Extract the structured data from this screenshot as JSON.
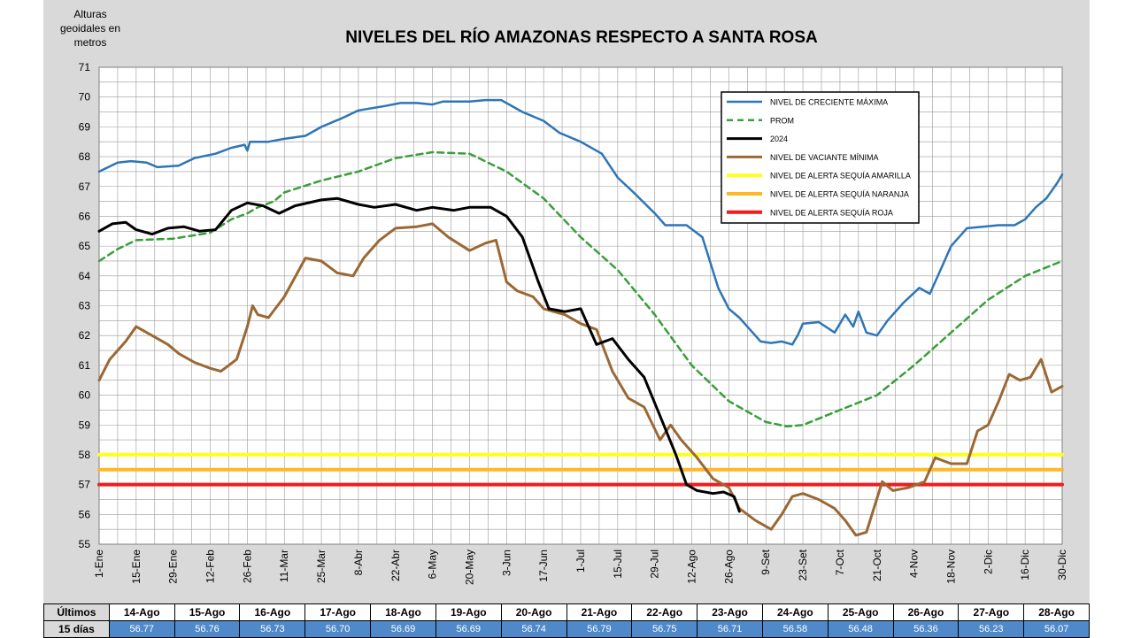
{
  "chart_data": {
    "type": "line",
    "title": "NIVELES DEL RÍO AMAZONAS RESPECTO A SANTA ROSA",
    "ylabel_lines": [
      "Alturas",
      "geoidales en",
      "metros"
    ],
    "ylim": [
      55,
      71
    ],
    "yticks": [
      55,
      56,
      57,
      58,
      59,
      60,
      61,
      62,
      63,
      64,
      65,
      66,
      67,
      68,
      69,
      70,
      71
    ],
    "x_domain": [
      0,
      364
    ],
    "xticks": [
      {
        "label": "1-Ene",
        "day": 0
      },
      {
        "label": "15-Ene",
        "day": 14
      },
      {
        "label": "29-Ene",
        "day": 28
      },
      {
        "label": "12-Feb",
        "day": 42
      },
      {
        "label": "26-Feb",
        "day": 56
      },
      {
        "label": "11-Mar",
        "day": 70
      },
      {
        "label": "25-Mar",
        "day": 84
      },
      {
        "label": "8-Abr",
        "day": 98
      },
      {
        "label": "22-Abr",
        "day": 112
      },
      {
        "label": "6-May",
        "day": 126
      },
      {
        "label": "20-May",
        "day": 140
      },
      {
        "label": "3-Jun",
        "day": 154
      },
      {
        "label": "17-Jun",
        "day": 168
      },
      {
        "label": "1-Jul",
        "day": 182
      },
      {
        "label": "15-Jul",
        "day": 196
      },
      {
        "label": "29-Jul",
        "day": 210
      },
      {
        "label": "12-Ago",
        "day": 224
      },
      {
        "label": "26-Ago",
        "day": 238
      },
      {
        "label": "9-Set",
        "day": 252
      },
      {
        "label": "23-Set",
        "day": 266
      },
      {
        "label": "7-Oct",
        "day": 280
      },
      {
        "label": "21-Oct",
        "day": 294
      },
      {
        "label": "4-Nov",
        "day": 308
      },
      {
        "label": "18-Nov",
        "day": 322
      },
      {
        "label": "2-Dic",
        "day": 336
      },
      {
        "label": "16-Dic",
        "day": 350
      },
      {
        "label": "30-Dic",
        "day": 364
      }
    ],
    "series": [
      {
        "name": "NIVEL DE CRECIENTE MÁXIMA",
        "color": "#2e75b6",
        "dash": "",
        "width": 2.5,
        "points": [
          [
            0,
            67.5
          ],
          [
            7,
            67.8
          ],
          [
            12,
            67.85
          ],
          [
            18,
            67.8
          ],
          [
            22,
            67.65
          ],
          [
            30,
            67.7
          ],
          [
            36,
            67.95
          ],
          [
            44,
            68.1
          ],
          [
            50,
            68.3
          ],
          [
            55,
            68.4
          ],
          [
            56,
            68.2
          ],
          [
            57,
            68.5
          ],
          [
            64,
            68.5
          ],
          [
            70,
            68.6
          ],
          [
            78,
            68.7
          ],
          [
            84,
            69
          ],
          [
            92,
            69.3
          ],
          [
            98,
            69.55
          ],
          [
            108,
            69.7
          ],
          [
            114,
            69.8
          ],
          [
            120,
            69.8
          ],
          [
            126,
            69.75
          ],
          [
            130,
            69.85
          ],
          [
            140,
            69.85
          ],
          [
            146,
            69.9
          ],
          [
            152,
            69.9
          ],
          [
            160,
            69.5
          ],
          [
            168,
            69.2
          ],
          [
            174,
            68.8
          ],
          [
            182,
            68.5
          ],
          [
            190,
            68.1
          ],
          [
            196,
            67.3
          ],
          [
            202,
            66.8
          ],
          [
            210,
            66.1
          ],
          [
            214,
            65.7
          ],
          [
            222,
            65.7
          ],
          [
            228,
            65.3
          ],
          [
            234,
            63.6
          ],
          [
            238,
            62.9
          ],
          [
            242,
            62.6
          ],
          [
            246,
            62.2
          ],
          [
            250,
            61.8
          ],
          [
            254,
            61.75
          ],
          [
            258,
            61.8
          ],
          [
            262,
            61.7
          ],
          [
            264,
            62.0
          ],
          [
            266,
            62.4
          ],
          [
            272,
            62.45
          ],
          [
            278,
            62.1
          ],
          [
            282,
            62.7
          ],
          [
            285,
            62.3
          ],
          [
            287,
            62.8
          ],
          [
            290,
            62.1
          ],
          [
            294,
            62.0
          ],
          [
            298,
            62.5
          ],
          [
            304,
            63.1
          ],
          [
            310,
            63.6
          ],
          [
            314,
            63.4
          ],
          [
            318,
            64.2
          ],
          [
            322,
            65.0
          ],
          [
            328,
            65.6
          ],
          [
            334,
            65.65
          ],
          [
            340,
            65.7
          ],
          [
            346,
            65.7
          ],
          [
            350,
            65.9
          ],
          [
            354,
            66.3
          ],
          [
            358,
            66.6
          ],
          [
            362,
            67.1
          ],
          [
            364,
            67.4
          ]
        ]
      },
      {
        "name": "PROM",
        "color": "#3a9e3a",
        "dash": "7,5",
        "width": 2.5,
        "points": [
          [
            0,
            64.5
          ],
          [
            7,
            64.9
          ],
          [
            14,
            65.2
          ],
          [
            28,
            65.25
          ],
          [
            42,
            65.45
          ],
          [
            50,
            65.9
          ],
          [
            56,
            66.1
          ],
          [
            60,
            66.3
          ],
          [
            66,
            66.5
          ],
          [
            70,
            66.8
          ],
          [
            84,
            67.2
          ],
          [
            98,
            67.5
          ],
          [
            112,
            67.95
          ],
          [
            126,
            68.15
          ],
          [
            140,
            68.1
          ],
          [
            154,
            67.5
          ],
          [
            168,
            66.6
          ],
          [
            182,
            65.3
          ],
          [
            196,
            64.2
          ],
          [
            210,
            62.7
          ],
          [
            224,
            61.0
          ],
          [
            238,
            59.8
          ],
          [
            252,
            59.1
          ],
          [
            260,
            58.95
          ],
          [
            266,
            59.0
          ],
          [
            280,
            59.5
          ],
          [
            294,
            60.0
          ],
          [
            308,
            61.0
          ],
          [
            322,
            62.1
          ],
          [
            336,
            63.2
          ],
          [
            350,
            64.0
          ],
          [
            364,
            64.5
          ]
        ]
      },
      {
        "name": "2024",
        "color": "#000000",
        "dash": "",
        "width": 3,
        "points": [
          [
            0,
            65.5
          ],
          [
            5,
            65.75
          ],
          [
            10,
            65.8
          ],
          [
            14,
            65.55
          ],
          [
            20,
            65.4
          ],
          [
            26,
            65.6
          ],
          [
            32,
            65.65
          ],
          [
            38,
            65.5
          ],
          [
            44,
            65.55
          ],
          [
            50,
            66.2
          ],
          [
            56,
            66.45
          ],
          [
            62,
            66.35
          ],
          [
            68,
            66.1
          ],
          [
            74,
            66.35
          ],
          [
            84,
            66.55
          ],
          [
            90,
            66.6
          ],
          [
            98,
            66.4
          ],
          [
            104,
            66.3
          ],
          [
            112,
            66.4
          ],
          [
            120,
            66.2
          ],
          [
            126,
            66.3
          ],
          [
            134,
            66.2
          ],
          [
            140,
            66.3
          ],
          [
            148,
            66.3
          ],
          [
            154,
            66.0
          ],
          [
            160,
            65.3
          ],
          [
            166,
            63.8
          ],
          [
            170,
            62.9
          ],
          [
            176,
            62.8
          ],
          [
            182,
            62.9
          ],
          [
            188,
            61.7
          ],
          [
            194,
            61.9
          ],
          [
            200,
            61.2
          ],
          [
            206,
            60.6
          ],
          [
            212,
            59.3
          ],
          [
            218,
            58.0
          ],
          [
            222,
            57.0
          ],
          [
            226,
            56.8
          ],
          [
            232,
            56.7
          ],
          [
            236,
            56.75
          ],
          [
            240,
            56.6
          ],
          [
            242,
            56.1
          ]
        ]
      },
      {
        "name": "NIVEL DE VACIANTE MÍNIMA",
        "color": "#9b6834",
        "dash": "",
        "width": 3,
        "points": [
          [
            0,
            60.5
          ],
          [
            4,
            61.2
          ],
          [
            10,
            61.8
          ],
          [
            14,
            62.3
          ],
          [
            20,
            62.0
          ],
          [
            26,
            61.7
          ],
          [
            30,
            61.4
          ],
          [
            36,
            61.1
          ],
          [
            42,
            60.9
          ],
          [
            46,
            60.8
          ],
          [
            52,
            61.2
          ],
          [
            56,
            62.3
          ],
          [
            58,
            63.0
          ],
          [
            60,
            62.7
          ],
          [
            64,
            62.6
          ],
          [
            70,
            63.3
          ],
          [
            78,
            64.6
          ],
          [
            84,
            64.5
          ],
          [
            90,
            64.1
          ],
          [
            96,
            64.0
          ],
          [
            100,
            64.6
          ],
          [
            106,
            65.2
          ],
          [
            112,
            65.6
          ],
          [
            120,
            65.65
          ],
          [
            126,
            65.75
          ],
          [
            132,
            65.3
          ],
          [
            140,
            64.85
          ],
          [
            146,
            65.1
          ],
          [
            150,
            65.2
          ],
          [
            154,
            63.8
          ],
          [
            158,
            63.5
          ],
          [
            164,
            63.3
          ],
          [
            168,
            62.9
          ],
          [
            176,
            62.7
          ],
          [
            182,
            62.4
          ],
          [
            188,
            62.2
          ],
          [
            194,
            60.8
          ],
          [
            200,
            59.9
          ],
          [
            206,
            59.6
          ],
          [
            212,
            58.5
          ],
          [
            216,
            59.0
          ],
          [
            220,
            58.5
          ],
          [
            226,
            57.9
          ],
          [
            232,
            57.2
          ],
          [
            238,
            56.9
          ],
          [
            242,
            56.2
          ],
          [
            248,
            55.8
          ],
          [
            254,
            55.5
          ],
          [
            258,
            56.0
          ],
          [
            262,
            56.6
          ],
          [
            266,
            56.7
          ],
          [
            272,
            56.5
          ],
          [
            278,
            56.2
          ],
          [
            282,
            55.8
          ],
          [
            286,
            55.3
          ],
          [
            290,
            55.4
          ],
          [
            296,
            57.1
          ],
          [
            300,
            56.8
          ],
          [
            306,
            56.9
          ],
          [
            312,
            57.1
          ],
          [
            316,
            57.9
          ],
          [
            322,
            57.7
          ],
          [
            328,
            57.7
          ],
          [
            332,
            58.8
          ],
          [
            336,
            59.0
          ],
          [
            340,
            59.8
          ],
          [
            344,
            60.7
          ],
          [
            348,
            60.5
          ],
          [
            352,
            60.6
          ],
          [
            356,
            61.2
          ],
          [
            360,
            60.1
          ],
          [
            364,
            60.3
          ]
        ]
      },
      {
        "name": "NIVEL DE ALERTA SEQUÍA AMARILLA",
        "color": "#ffff1a",
        "dash": "",
        "width": 4,
        "points": [
          [
            0,
            58
          ],
          [
            364,
            58
          ]
        ]
      },
      {
        "name": "NIVEL DE ALERTA SEQUÍA NARANJA",
        "color": "#ffb726",
        "dash": "",
        "width": 4,
        "points": [
          [
            0,
            57.5
          ],
          [
            364,
            57.5
          ]
        ]
      },
      {
        "name": "NIVEL DE ALERTA SEQUÍA ROJA",
        "color": "#f01c1c",
        "dash": "",
        "width": 4,
        "points": [
          [
            0,
            57
          ],
          [
            364,
            57
          ]
        ]
      }
    ],
    "legend_position": "top-right"
  },
  "table": {
    "row_label_1": "Últimos",
    "row_label_2": "15 días",
    "dates": [
      "14-Ago",
      "15-Ago",
      "16-Ago",
      "17-Ago",
      "18-Ago",
      "19-Ago",
      "20-Ago",
      "21-Ago",
      "22-Ago",
      "23-Ago",
      "24-Ago",
      "25-Ago",
      "26-Ago",
      "27-Ago",
      "28-Ago"
    ],
    "values": [
      "56.77",
      "56.76",
      "56.73",
      "56.70",
      "56.69",
      "56.69",
      "56.74",
      "56.79",
      "56.75",
      "56.71",
      "56.58",
      "56.48",
      "56.36",
      "56.23",
      "56.07"
    ]
  }
}
